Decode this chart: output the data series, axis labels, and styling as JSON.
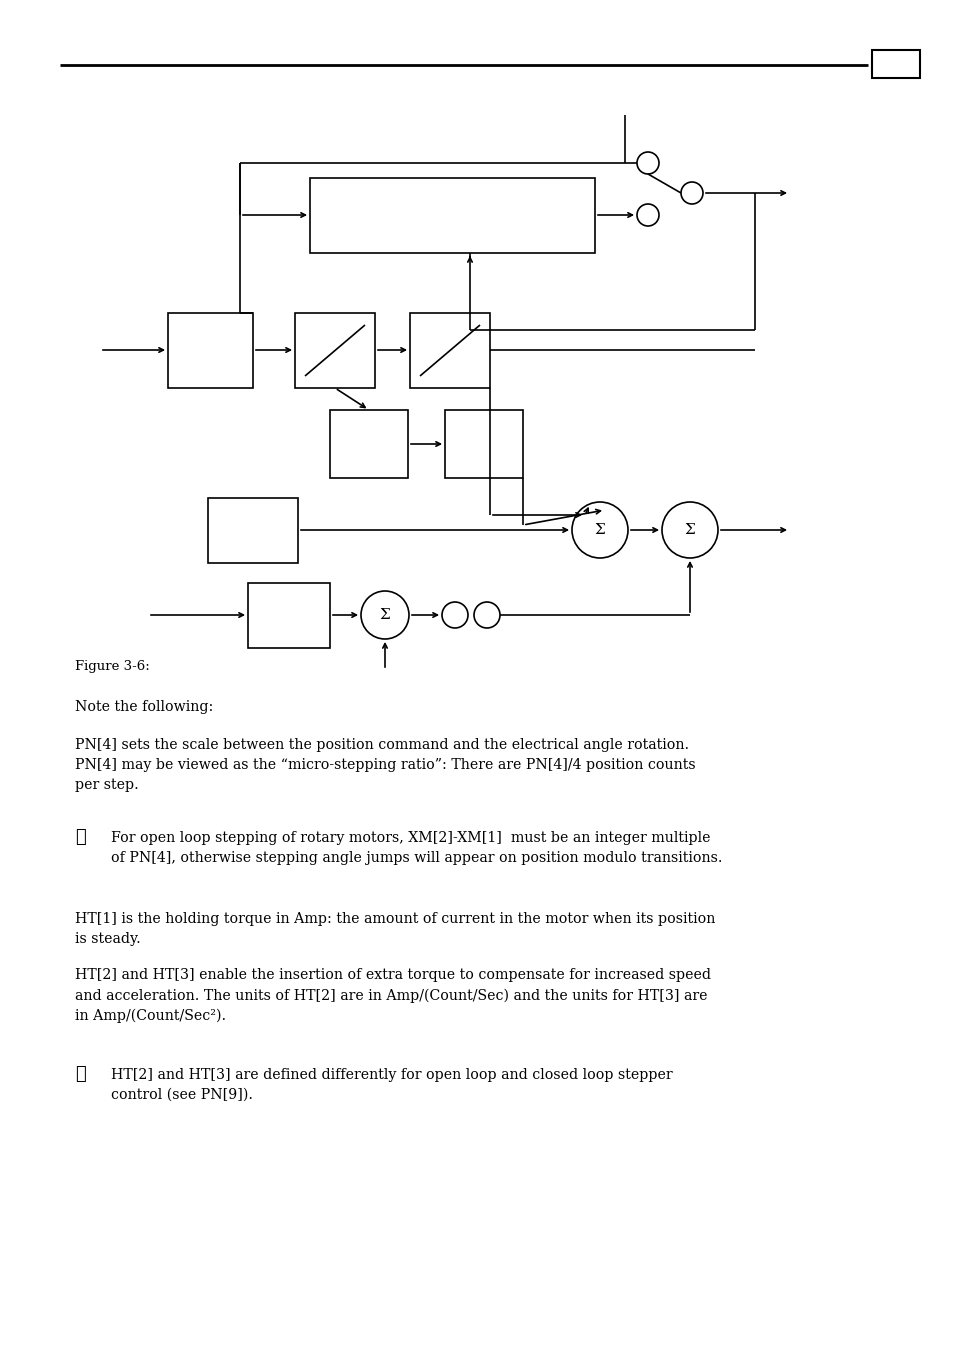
{
  "bg_color": "#ffffff",
  "sigma_symbol": "Σ",
  "texts": {
    "figure_label": "Figure 3-6:",
    "note": "Note the following:",
    "p1": "PN[4] sets the scale between the position command and the electrical angle rotation.\nPN[4] may be viewed as the “micro-stepping ratio”: There are PN[4]/4 position counts\nper step.",
    "p2": "For open loop stepping of rotary motors, XM[2]-XM[1]  must be an integer multiple\nof PN[4], otherwise stepping angle jumps will appear on position modulo transitions.",
    "p3": "HT[1] is the holding torque in Amp: the amount of current in the motor when its position\nis steady.",
    "p4": "HT[2] and HT[3] enable the insertion of extra torque to compensate for increased speed\nand acceleration. The units of HT[2] are in Amp/(Count/Sec) and the units for HT[3] are\nin Amp/(Count/Sec²).",
    "p5": "HT[2] and HT[3] are defined differently for open loop and closed loop stepper\ncontrol (see PN[9])."
  }
}
